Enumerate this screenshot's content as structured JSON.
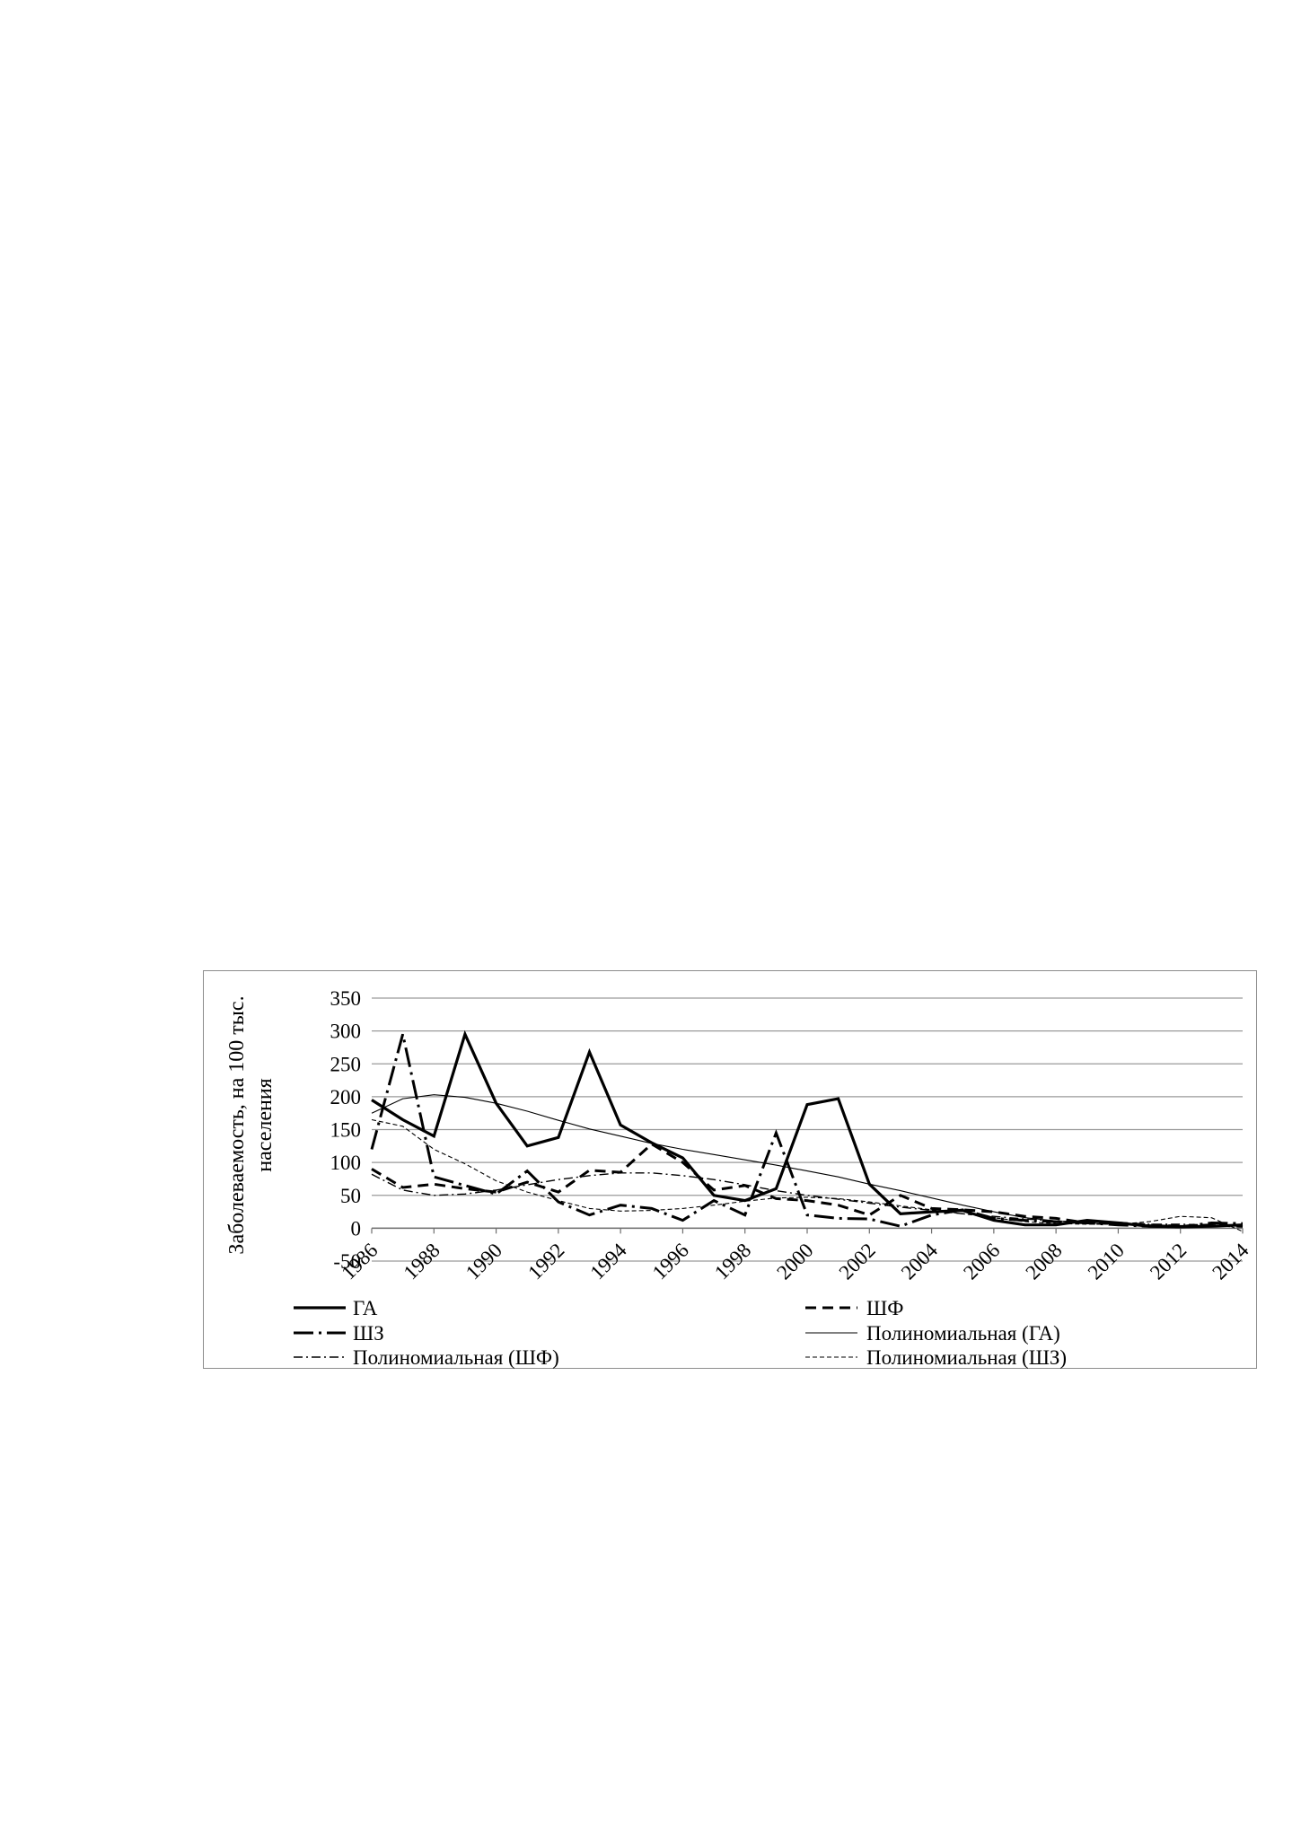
{
  "chart_data": {
    "type": "line",
    "title": "",
    "xlabel": "",
    "ylabel_lines": [
      "Заболеваемость, на 100 тыс.",
      "населения"
    ],
    "ylim": [
      -50,
      350
    ],
    "yticks": [
      -50,
      0,
      50,
      100,
      150,
      200,
      250,
      300,
      350
    ],
    "x": [
      1986,
      1987,
      1988,
      1989,
      1990,
      1991,
      1992,
      1993,
      1994,
      1995,
      1996,
      1997,
      1998,
      1999,
      2000,
      2001,
      2002,
      2003,
      2004,
      2005,
      2006,
      2007,
      2008,
      2009,
      2010,
      2011,
      2012,
      2013,
      2014
    ],
    "xtick_labels": [
      "1986",
      "1988",
      "1990",
      "1992",
      "1994",
      "1996",
      "1998",
      "2000",
      "2002",
      "2004",
      "2006",
      "2008",
      "2010",
      "2012",
      "2014"
    ],
    "xtick_values": [
      1986,
      1988,
      1990,
      1992,
      1994,
      1996,
      1998,
      2000,
      2002,
      2004,
      2006,
      2008,
      2010,
      2012,
      2014
    ],
    "grid": "horizontal",
    "legend_position": "bottom",
    "series": [
      {
        "name": "ГА",
        "style": "solid-thick",
        "values": [
          195,
          165,
          140,
          295,
          190,
          125,
          138,
          268,
          157,
          130,
          107,
          50,
          42,
          60,
          188,
          197,
          67,
          22,
          25,
          27,
          12,
          5,
          5,
          12,
          8,
          3,
          2,
          3,
          5
        ]
      },
      {
        "name": "ШФ",
        "style": "dash",
        "values": [
          90,
          62,
          67,
          60,
          55,
          70,
          55,
          88,
          85,
          128,
          100,
          58,
          65,
          45,
          42,
          35,
          20,
          50,
          30,
          28,
          25,
          18,
          15,
          8,
          8,
          5,
          3,
          5,
          3
        ]
      },
      {
        "name": "ШЗ",
        "style": "longdash-dot",
        "values": [
          120,
          295,
          78,
          65,
          52,
          87,
          40,
          20,
          35,
          30,
          12,
          42,
          20,
          145,
          20,
          15,
          14,
          3,
          20,
          28,
          15,
          12,
          10,
          8,
          5,
          3,
          2,
          8,
          7
        ]
      },
      {
        "name": "Полиномиальная (ГА)",
        "style": "thin-solid",
        "values": [
          175,
          197,
          203,
          199,
          190,
          178,
          164,
          151,
          140,
          129,
          120,
          112,
          104,
          96,
          87,
          78,
          67,
          57,
          46,
          35,
          25,
          16,
          11,
          8,
          6,
          5,
          4,
          4,
          3
        ]
      },
      {
        "name": "Полиномиальная (ШФ)",
        "style": "thin-dashdot",
        "values": [
          82,
          58,
          50,
          52,
          58,
          66,
          74,
          80,
          84,
          84,
          80,
          74,
          66,
          57,
          50,
          44,
          38,
          32,
          27,
          22,
          18,
          14,
          11,
          9,
          7,
          6,
          6,
          5,
          4
        ]
      },
      {
        "name": "Полиномиальная (ШЗ)",
        "style": "thin-dash",
        "values": [
          165,
          155,
          120,
          98,
          72,
          55,
          42,
          30,
          26,
          27,
          30,
          35,
          41,
          46,
          47,
          45,
          40,
          34,
          28,
          22,
          16,
          10,
          7,
          6,
          6,
          10,
          18,
          16,
          -5
        ]
      }
    ]
  }
}
